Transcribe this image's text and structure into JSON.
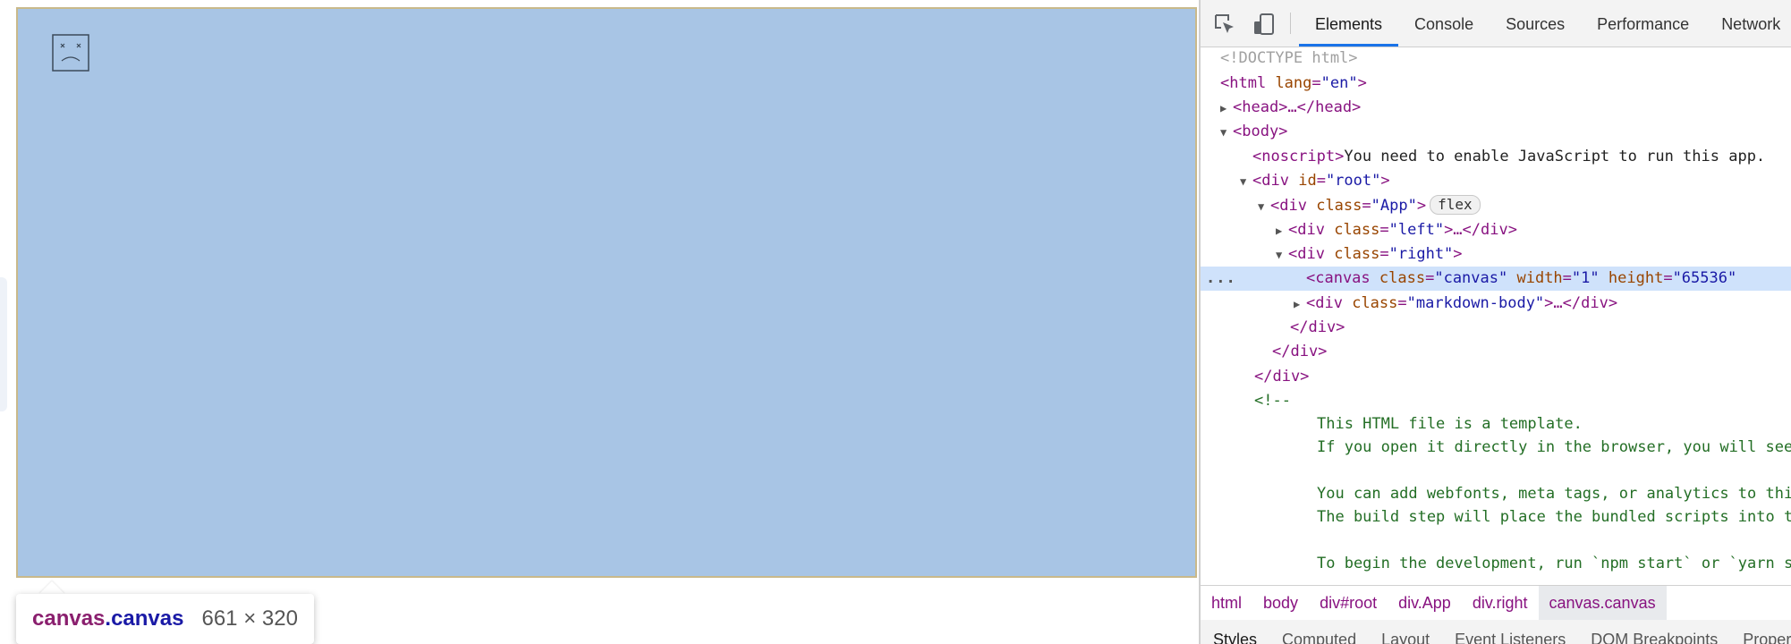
{
  "devtools": {
    "tabs": [
      "Elements",
      "Console",
      "Sources",
      "Performance",
      "Network"
    ],
    "active_tab": "Elements",
    "dom": {
      "doctype": "<!DOCTYPE html>",
      "html_open": "<html",
      "html_lang_attr": "lang",
      "html_lang_val": "\"en\"",
      "head": "<head>…</head>",
      "body_open": "<body>",
      "noscript_tag": "<noscript>",
      "noscript_text": "You need to enable JavaScript to run this app.",
      "root_div": "<div",
      "id_attr": "id",
      "root_val": "\"root\"",
      "class_attr": "class",
      "app_val": "\"App\"",
      "flex_badge": "flex",
      "left_val": "\"left\"",
      "right_val": "\"right\"",
      "collapsed": ">…</div>",
      "canvas_tag": "<canvas",
      "canvas_class_val": "\"canvas\"",
      "width_attr": "width",
      "width_val": "\"1\"",
      "height_attr": "height",
      "height_val": "\"65536\"",
      "markdown_val": "\"markdown-body\"",
      "close_div": "</div>",
      "comment_open": "<!--",
      "comment_lines": [
        "This HTML file is a template.",
        "If you open it directly in the browser, you will see an empty page.",
        "",
        "You can add webfonts, meta tags, or analytics to this file.",
        "The build step will place the bundled scripts into the <body> tag.",
        "",
        "To begin the development, run `npm start` or `yarn start`."
      ],
      "selected_marker": "..."
    },
    "breadcrumbs": [
      "html",
      "body",
      "div#root",
      "div.App",
      "div.right",
      "canvas.canvas"
    ],
    "active_breadcrumb": "canvas.canvas",
    "subtabs": [
      "Styles",
      "Computed",
      "Layout",
      "Event Listeners",
      "DOM Breakpoints",
      "Properties"
    ]
  },
  "tooltip": {
    "tag": "canvas",
    "cls": ".canvas",
    "size": "661 × 320"
  },
  "colors": {
    "highlight": "#a8c5e5",
    "tag": "#881280",
    "attr": "#994500",
    "value": "#1a1aa6",
    "comment": "#236e25",
    "accent": "#1a73e8"
  },
  "icons": [
    "broken-image-icon",
    "inspect-element-icon",
    "device-toolbar-icon"
  ]
}
